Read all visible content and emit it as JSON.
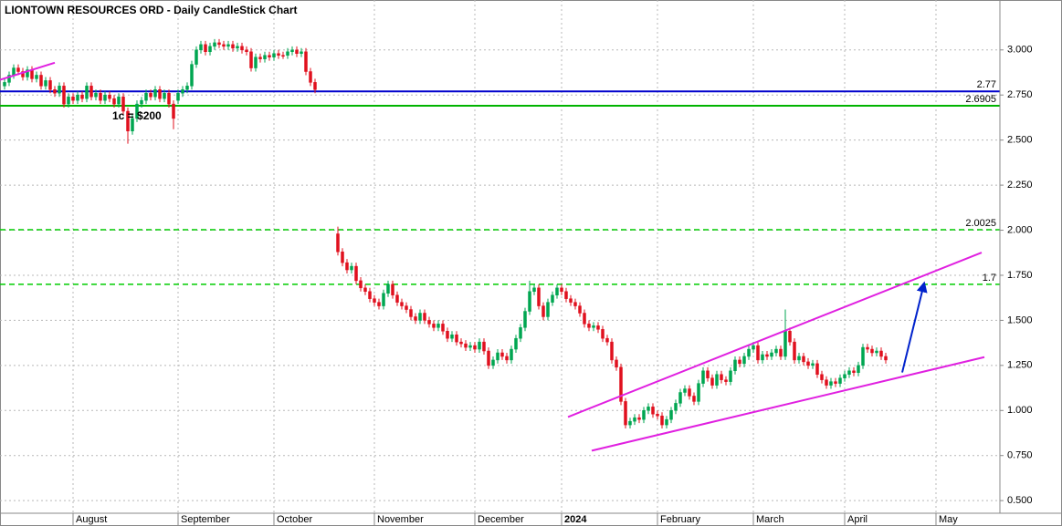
{
  "chart_data": {
    "type": "candlestick",
    "title": "LIONTOWN RESOURCES ORD - Daily CandleStick Chart",
    "up_color": "#00a651",
    "down_color": "#e0101e",
    "grid": true,
    "xlim": [
      -1,
      218
    ],
    "xticks": [
      {
        "value": 15,
        "label": "August"
      },
      {
        "value": 38,
        "label": "September"
      },
      {
        "value": 59,
        "label": "October"
      },
      {
        "value": 81,
        "label": "November"
      },
      {
        "value": 103,
        "label": "December"
      },
      {
        "value": 122,
        "label": "2024"
      },
      {
        "value": 143,
        "label": "February"
      },
      {
        "value": 164,
        "label": "March"
      },
      {
        "value": 184,
        "label": "April"
      },
      {
        "value": 204,
        "label": "May"
      }
    ],
    "ylim": [
      0.43,
      3.277
    ],
    "yticks": [
      {
        "value": 0.5,
        "label": "0.500"
      },
      {
        "value": 0.75,
        "label": "0.750"
      },
      {
        "value": 1,
        "label": "1.000"
      },
      {
        "value": 1.25,
        "label": "1.250"
      },
      {
        "value": 1.5,
        "label": "1.500"
      },
      {
        "value": 1.75,
        "label": "1.750"
      },
      {
        "value": 2,
        "label": "2.000"
      },
      {
        "value": 2.25,
        "label": "2.250"
      },
      {
        "value": 2.5,
        "label": "2.500"
      },
      {
        "value": 2.75,
        "label": "2.750"
      },
      {
        "value": 3,
        "label": "3.000"
      }
    ],
    "open": [
      2.8,
      2.82,
      2.86,
      2.9,
      2.88,
      2.85,
      2.89,
      2.84,
      2.86,
      2.8,
      2.83,
      2.78,
      2.76,
      2.8,
      2.7,
      2.74,
      2.72,
      2.75,
      2.73,
      2.8,
      2.74,
      2.76,
      2.72,
      2.75,
      2.73,
      2.7,
      2.74,
      2.66,
      2.55,
      2.62,
      2.7,
      2.72,
      2.76,
      2.74,
      2.78,
      2.73,
      2.76,
      2.7,
      2.72,
      2.76,
      2.78,
      2.8,
      2.92,
      3.0,
      3.03,
      2.99,
      3.02,
      3.04,
      3.03,
      3.02,
      3.03,
      3.01,
      3.02,
      3.0,
      2.99,
      2.9,
      2.96,
      2.95,
      2.97,
      2.96,
      2.98,
      2.97,
      2.97,
      2.99,
      3.0,
      2.98,
      2.99,
      2.88,
      2.82,
      null,
      null,
      null,
      null,
      1.98,
      1.88,
      1.82,
      1.78,
      1.8,
      1.72,
      1.68,
      1.66,
      1.62,
      1.6,
      1.58,
      1.65,
      1.7,
      1.64,
      1.6,
      1.58,
      1.56,
      1.52,
      1.5,
      1.54,
      1.5,
      1.48,
      1.46,
      1.48,
      1.44,
      1.4,
      1.42,
      1.38,
      1.37,
      1.35,
      1.36,
      1.34,
      1.38,
      1.33,
      1.25,
      1.28,
      1.32,
      1.3,
      1.28,
      1.34,
      1.4,
      1.46,
      1.55,
      1.66,
      1.68,
      1.58,
      1.52,
      1.6,
      1.64,
      1.68,
      1.66,
      1.62,
      1.6,
      1.58,
      1.54,
      1.48,
      1.46,
      1.47,
      1.45,
      1.4,
      1.38,
      1.28,
      1.24,
      1.05,
      0.92,
      0.94,
      0.96,
      0.95,
      1.0,
      1.02,
      0.98,
      0.97,
      0.92,
      0.95,
      1.0,
      1.04,
      1.1,
      1.12,
      1.08,
      1.05,
      1.15,
      1.22,
      1.18,
      1.14,
      1.2,
      1.17,
      1.16,
      1.22,
      1.28,
      1.26,
      1.3,
      1.34,
      1.36,
      1.28,
      1.31,
      1.3,
      1.32,
      1.34,
      1.3,
      1.44,
      1.38,
      1.28,
      1.3,
      1.27,
      1.25,
      1.26,
      1.2,
      1.17,
      1.14,
      1.16,
      1.15,
      1.18,
      1.2,
      1.22,
      1.21,
      1.25,
      1.35,
      1.34,
      1.32,
      1.33,
      1.3
    ],
    "high": [
      2.84,
      2.88,
      2.92,
      2.92,
      2.9,
      2.91,
      2.91,
      2.88,
      2.88,
      2.85,
      2.85,
      2.8,
      2.82,
      2.82,
      2.76,
      2.76,
      2.77,
      2.77,
      2.82,
      2.82,
      2.78,
      2.78,
      2.77,
      2.77,
      2.75,
      2.76,
      2.76,
      2.68,
      2.64,
      2.72,
      2.74,
      2.78,
      2.78,
      2.8,
      2.8,
      2.78,
      2.78,
      2.72,
      2.78,
      2.8,
      2.82,
      2.94,
      3.02,
      3.05,
      3.05,
      3.04,
      3.06,
      3.06,
      3.05,
      3.05,
      3.05,
      3.04,
      3.04,
      3.02,
      3.01,
      2.98,
      2.98,
      2.99,
      2.99,
      3.0,
      3.0,
      2.99,
      3.01,
      3.02,
      3.02,
      3.01,
      3.01,
      2.9,
      2.84,
      null,
      null,
      null,
      null,
      2.02,
      1.9,
      1.84,
      1.82,
      1.82,
      1.74,
      1.7,
      1.68,
      1.64,
      1.62,
      1.67,
      1.72,
      1.72,
      1.66,
      1.62,
      1.6,
      1.58,
      1.54,
      1.56,
      1.56,
      1.52,
      1.5,
      1.5,
      1.5,
      1.46,
      1.44,
      1.44,
      1.4,
      1.39,
      1.38,
      1.38,
      1.4,
      1.4,
      1.35,
      1.3,
      1.34,
      1.34,
      1.32,
      1.36,
      1.42,
      1.48,
      1.57,
      1.72,
      1.7,
      1.7,
      1.6,
      1.62,
      1.66,
      1.7,
      1.7,
      1.68,
      1.64,
      1.62,
      1.6,
      1.56,
      1.5,
      1.49,
      1.49,
      1.47,
      1.42,
      1.4,
      1.3,
      1.26,
      1.07,
      0.96,
      0.98,
      0.98,
      1.02,
      1.04,
      1.04,
      1.0,
      0.99,
      0.97,
      1.02,
      1.06,
      1.12,
      1.14,
      1.14,
      1.1,
      1.17,
      1.24,
      1.24,
      1.2,
      1.22,
      1.22,
      1.19,
      1.24,
      1.3,
      1.3,
      1.32,
      1.36,
      1.38,
      1.38,
      1.33,
      1.33,
      1.34,
      1.36,
      1.36,
      1.56,
      1.46,
      1.4,
      1.32,
      1.32,
      1.29,
      1.28,
      1.28,
      1.22,
      1.19,
      1.18,
      1.18,
      1.2,
      1.22,
      1.24,
      1.24,
      1.27,
      1.37,
      1.37,
      1.36,
      1.35,
      1.35,
      1.32
    ],
    "low": [
      2.78,
      2.8,
      2.84,
      2.86,
      2.83,
      2.83,
      2.82,
      2.82,
      2.78,
      2.78,
      2.76,
      2.74,
      2.74,
      2.68,
      2.68,
      2.7,
      2.7,
      2.71,
      2.71,
      2.72,
      2.72,
      2.7,
      2.7,
      2.71,
      2.68,
      2.68,
      2.64,
      2.48,
      2.53,
      2.6,
      2.68,
      2.7,
      2.72,
      2.72,
      2.71,
      2.71,
      2.68,
      2.56,
      2.7,
      2.74,
      2.76,
      2.78,
      2.9,
      2.98,
      2.97,
      2.97,
      3.0,
      3.01,
      3.0,
      3.0,
      2.99,
      2.99,
      2.98,
      2.97,
      2.88,
      2.88,
      2.93,
      2.93,
      2.94,
      2.94,
      2.95,
      2.95,
      2.95,
      2.97,
      2.96,
      2.96,
      2.86,
      2.8,
      2.76,
      null,
      null,
      null,
      null,
      1.86,
      1.8,
      1.76,
      1.76,
      1.7,
      1.66,
      1.64,
      1.6,
      1.58,
      1.56,
      1.56,
      1.63,
      1.62,
      1.58,
      1.56,
      1.54,
      1.5,
      1.48,
      1.48,
      1.48,
      1.46,
      1.44,
      1.44,
      1.42,
      1.38,
      1.38,
      1.36,
      1.35,
      1.33,
      1.33,
      1.32,
      1.32,
      1.31,
      1.23,
      1.23,
      1.26,
      1.28,
      1.26,
      1.26,
      1.32,
      1.38,
      1.44,
      1.53,
      1.64,
      1.56,
      1.5,
      1.5,
      1.58,
      1.62,
      1.64,
      1.6,
      1.58,
      1.56,
      1.52,
      1.46,
      1.44,
      1.44,
      1.43,
      1.38,
      1.36,
      1.26,
      1.22,
      1.03,
      0.9,
      0.9,
      0.92,
      0.93,
      0.93,
      0.98,
      0.96,
      0.95,
      0.9,
      0.9,
      0.93,
      0.98,
      1.02,
      1.08,
      1.06,
      1.03,
      1.03,
      1.13,
      1.16,
      1.12,
      1.12,
      1.15,
      1.14,
      1.14,
      1.2,
      1.24,
      1.24,
      1.28,
      1.32,
      1.26,
      1.26,
      1.28,
      1.28,
      1.3,
      1.28,
      1.28,
      1.36,
      1.26,
      1.26,
      1.25,
      1.23,
      1.23,
      1.18,
      1.15,
      1.12,
      1.12,
      1.13,
      1.13,
      1.16,
      1.18,
      1.19,
      1.19,
      1.23,
      1.32,
      1.3,
      1.3,
      1.28,
      1.26
    ],
    "close": [
      2.82,
      2.86,
      2.9,
      2.88,
      2.85,
      2.89,
      2.84,
      2.86,
      2.8,
      2.83,
      2.78,
      2.76,
      2.8,
      2.7,
      2.74,
      2.72,
      2.75,
      2.73,
      2.8,
      2.74,
      2.76,
      2.72,
      2.75,
      2.73,
      2.7,
      2.74,
      2.66,
      2.55,
      2.62,
      2.7,
      2.72,
      2.76,
      2.74,
      2.78,
      2.73,
      2.76,
      2.7,
      2.62,
      2.76,
      2.78,
      2.8,
      2.92,
      3.0,
      3.03,
      2.99,
      3.02,
      3.04,
      3.03,
      3.02,
      3.03,
      3.01,
      3.02,
      3.0,
      2.99,
      2.9,
      2.96,
      2.95,
      2.97,
      2.96,
      2.98,
      2.97,
      2.97,
      2.99,
      3.0,
      2.98,
      2.99,
      2.88,
      2.82,
      2.78,
      null,
      null,
      null,
      null,
      1.88,
      1.82,
      1.78,
      1.8,
      1.72,
      1.68,
      1.66,
      1.62,
      1.6,
      1.58,
      1.65,
      1.7,
      1.64,
      1.6,
      1.58,
      1.56,
      1.52,
      1.5,
      1.54,
      1.5,
      1.48,
      1.46,
      1.48,
      1.44,
      1.4,
      1.42,
      1.38,
      1.37,
      1.35,
      1.36,
      1.34,
      1.38,
      1.33,
      1.25,
      1.28,
      1.32,
      1.3,
      1.28,
      1.34,
      1.4,
      1.46,
      1.55,
      1.66,
      1.68,
      1.58,
      1.52,
      1.6,
      1.64,
      1.68,
      1.66,
      1.62,
      1.6,
      1.58,
      1.54,
      1.48,
      1.46,
      1.47,
      1.45,
      1.4,
      1.38,
      1.28,
      1.24,
      1.05,
      0.92,
      0.94,
      0.96,
      0.95,
      1.0,
      1.02,
      0.98,
      0.97,
      0.92,
      0.95,
      1.0,
      1.04,
      1.1,
      1.12,
      1.08,
      1.05,
      1.15,
      1.22,
      1.18,
      1.14,
      1.2,
      1.17,
      1.16,
      1.22,
      1.28,
      1.26,
      1.3,
      1.34,
      1.36,
      1.28,
      1.31,
      1.3,
      1.32,
      1.34,
      1.3,
      1.44,
      1.38,
      1.28,
      1.3,
      1.27,
      1.25,
      1.26,
      1.2,
      1.17,
      1.14,
      1.16,
      1.15,
      1.18,
      1.2,
      1.22,
      1.21,
      1.25,
      1.35,
      1.34,
      1.32,
      1.33,
      1.3,
      1.28
    ],
    "levels": [
      {
        "value": 2.77,
        "color": "#0000cc",
        "dashed": false
      },
      {
        "value": 2.6905,
        "color": "#00b400",
        "dashed": false
      },
      {
        "value": 2.0025,
        "color": "#00cc00",
        "dashed": true
      },
      {
        "value": 1.7,
        "color": "#00cc00",
        "dashed": true
      }
    ],
    "trendlines": [
      {
        "x": [
          -1,
          11
        ],
        "y": [
          2.834,
          2.929
        ],
        "color": "#e020e0",
        "arrow": false
      },
      {
        "x": [
          123.4,
          214
        ],
        "y": [
          0.964,
          1.876
        ],
        "color": "#e020e0",
        "arrow": false
      },
      {
        "x": [
          128.6,
          214.6
        ],
        "y": [
          0.777,
          1.296
        ],
        "color": "#e020e0",
        "arrow": false
      },
      {
        "x": [
          196.6,
          201.4
        ],
        "y": [
          1.211,
          1.705
        ],
        "color": "#0022cc",
        "arrow": true
      }
    ],
    "annotation": "1c = $200",
    "annotation_color": "#0000cc"
  }
}
